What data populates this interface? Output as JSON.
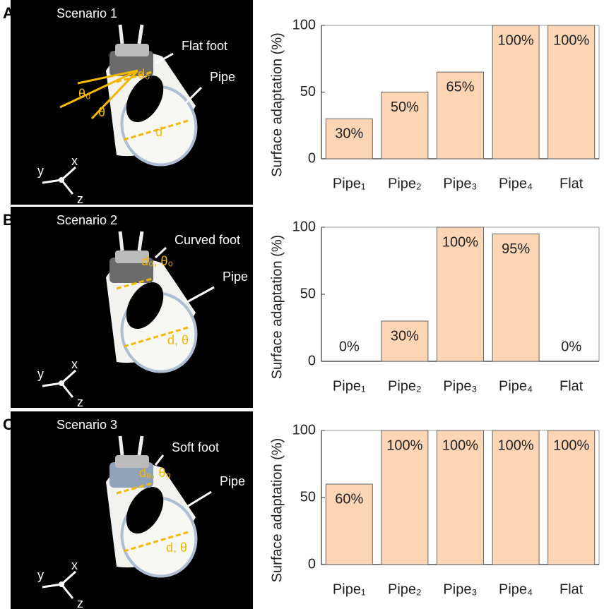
{
  "panels": [
    {
      "letter": "A",
      "scene": {
        "title": "Scenario 1",
        "labels": [
          "Flat foot",
          "Pipe",
          "d₀",
          "θ₀",
          "θ",
          "d"
        ],
        "axes": [
          "x",
          "y",
          "z"
        ]
      }
    },
    {
      "letter": "B",
      "scene": {
        "title": "Scenario 2",
        "labels": [
          "Curved foot",
          "Pipe",
          "d₀, θ₀",
          "d, θ"
        ],
        "axes": [
          "x",
          "y",
          "z"
        ]
      }
    },
    {
      "letter": "C",
      "scene": {
        "title": "Scenario 3",
        "labels": [
          "Soft foot",
          "Pipe",
          "d₀, θ₀",
          "d, θ"
        ],
        "axes": [
          "x",
          "y",
          "z"
        ]
      }
    }
  ],
  "chart_data": [
    {
      "type": "bar",
      "ylabel": "Surface adaptation (%)",
      "categories": [
        "Pipe₁",
        "Pipe₂",
        "Pipe₃",
        "Pipe₄",
        "Flat"
      ],
      "values": [
        30,
        50,
        65,
        100,
        100
      ],
      "value_labels": [
        "30%",
        "50%",
        "65%",
        "100%",
        "100%"
      ],
      "color": "#fcd5b5",
      "ylim": [
        0,
        100
      ],
      "yticks": [
        0,
        50,
        100
      ]
    },
    {
      "type": "bar",
      "ylabel": "Surface adaptation (%)",
      "categories": [
        "Pipe₁",
        "Pipe₂",
        "Pipe₃",
        "Pipe₄",
        "Flat"
      ],
      "values": [
        0,
        30,
        100,
        95,
        0
      ],
      "value_labels": [
        "0%",
        "30%",
        "100%",
        "95%",
        "0%"
      ],
      "color": "#fcd5b5",
      "ylim": [
        0,
        100
      ],
      "yticks": [
        0,
        50,
        100
      ]
    },
    {
      "type": "bar",
      "ylabel": "Surface adaptation (%)",
      "categories": [
        "Pipe₁",
        "Pipe₂",
        "Pipe₃",
        "Pipe₄",
        "Flat"
      ],
      "values": [
        60,
        100,
        100,
        100,
        100
      ],
      "value_labels": [
        "60%",
        "100%",
        "100%",
        "100%",
        "100%"
      ],
      "color": "#fcd5b5",
      "ylim": [
        0,
        100
      ],
      "yticks": [
        0,
        50,
        100
      ]
    }
  ]
}
